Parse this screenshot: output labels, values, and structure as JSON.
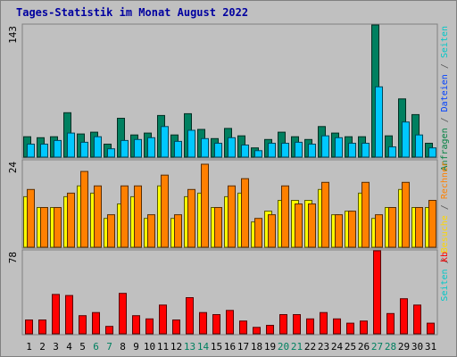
{
  "chart_data": {
    "type": "bar",
    "title": "Tages-Statistik im Monat August 2022",
    "categories": [
      "1",
      "2",
      "3",
      "4",
      "5",
      "6",
      "7",
      "8",
      "9",
      "10",
      "11",
      "12",
      "13",
      "14",
      "15",
      "16",
      "17",
      "18",
      "19",
      "20",
      "21",
      "22",
      "23",
      "24",
      "25",
      "26",
      "27",
      "28",
      "29",
      "30",
      "31"
    ],
    "weekend_days": [
      6,
      7,
      13,
      14,
      20,
      21,
      27,
      28
    ],
    "panels": [
      {
        "id": "top",
        "axis_max_label": "143",
        "ylim": [
          0,
          143
        ],
        "right_labels": [
          {
            "text": "Anfragen",
            "color": "#008040"
          },
          {
            "text": " / ",
            "color": "#555555"
          },
          {
            "text": "Dateien",
            "color": "#0040ff"
          },
          {
            "text": " / ",
            "color": "#555555"
          },
          {
            "text": "Seiten",
            "color": "#00c8c8"
          }
        ],
        "series": [
          {
            "name": "Anfragen",
            "color": "#008060",
            "values": [
              22,
              21,
              22,
              48,
              25,
              27,
              14,
              42,
              24,
              26,
              45,
              24,
              47,
              30,
              20,
              31,
              23,
              10,
              19,
              27,
              22,
              19,
              33,
              26,
              22,
              22,
              143,
              23,
              63,
              46,
              15
            ]
          },
          {
            "name": "Dateien",
            "color": "#00c8ff",
            "values": [
              14,
              14,
              18,
              26,
              16,
              22,
              9,
              18,
              19,
              21,
              33,
              17,
              29,
              20,
              15,
              21,
              13,
              7,
              15,
              15,
              16,
              14,
              23,
              21,
              15,
              15,
              76,
              11,
              38,
              24,
              10
            ]
          }
        ]
      },
      {
        "id": "middle",
        "axis_max_label": "24",
        "ylim": [
          0,
          24
        ],
        "right_labels": [
          {
            "text": "Seiten",
            "color": "#00c8c8"
          },
          {
            "text": " / ",
            "color": "#555555"
          },
          {
            "text": "Besuche",
            "color": "#ffd700"
          },
          {
            "text": " / ",
            "color": "#555555"
          },
          {
            "text": "Rechner",
            "color": "#ff8000"
          }
        ],
        "series": [
          {
            "name": "Besuche",
            "color": "#ffff00",
            "values": [
              14,
              11,
              11,
              14,
              17,
              15,
              8,
              12,
              14,
              8,
              17,
              8,
              14,
              15,
              11,
              14,
              15,
              7,
              10,
              13,
              13,
              13,
              16,
              9,
              10,
              15,
              8,
              11,
              16,
              11,
              11
            ]
          },
          {
            "name": "Rechner",
            "color": "#ff8000",
            "values": [
              16,
              11,
              11,
              15,
              21,
              17,
              9,
              17,
              17,
              9,
              20,
              9,
              16,
              23,
              11,
              17,
              19,
              8,
              9,
              17,
              12,
              12,
              18,
              9,
              10,
              18,
              9,
              11,
              18,
              11,
              13
            ]
          }
        ]
      },
      {
        "id": "bottom",
        "axis_max_label": "78",
        "ylim": [
          0,
          78
        ],
        "right_labels": [
          {
            "text": "kb",
            "color": "#ff0000"
          }
        ],
        "series": [
          {
            "name": "kb",
            "color": "#ff0000",
            "values": [
              13,
              13,
              37,
              36,
              17,
              20,
              7,
              38,
              17,
              14,
              27,
              13,
              34,
              20,
              18,
              22,
              12,
              6,
              8,
              18,
              18,
              14,
              20,
              14,
              10,
              12,
              78,
              19,
              33,
              27,
              10
            ]
          }
        ]
      }
    ]
  },
  "colors": {
    "background": "#c0c0c0",
    "panel_bg": "#c0c0c0",
    "title": "#0000a0",
    "weekend_label": "#008060",
    "weekday_label": "#000000"
  }
}
